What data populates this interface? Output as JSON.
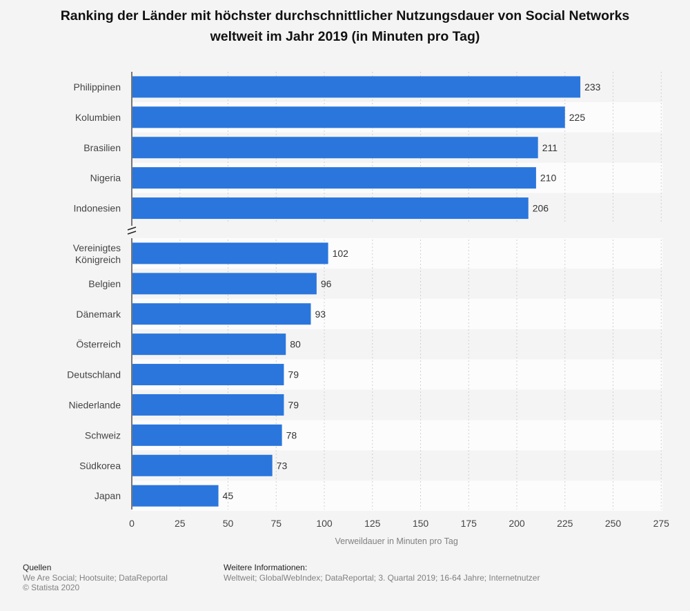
{
  "chart_data": {
    "type": "bar",
    "orientation": "horizontal",
    "title": "Ranking der Länder mit höchster durchschnittlicher Nutzungsdauer von Social Networks weltweit im Jahr 2019 (in Minuten pro Tag)",
    "xlabel": "Verweildauer in Minuten pro Tag",
    "ylabel": "",
    "xlim": [
      0,
      275
    ],
    "xticks": [
      0,
      25,
      50,
      75,
      100,
      125,
      150,
      175,
      200,
      225,
      250,
      275
    ],
    "grid": true,
    "axis_break": true,
    "categories": [
      "Philippinen",
      "Kolumbien",
      "Brasilien",
      "Nigeria",
      "Indonesien",
      "Vereinigtes Königreich",
      "Belgien",
      "Dänemark",
      "Österreich",
      "Deutschland",
      "Niederlande",
      "Schweiz",
      "Südkorea",
      "Japan"
    ],
    "values": [
      233,
      225,
      211,
      210,
      206,
      102,
      96,
      93,
      80,
      79,
      79,
      78,
      73,
      45
    ],
    "bar_color": "#2a76dd"
  },
  "footer": {
    "sources_heading": "Quellen",
    "sources_line1": "We Are Social; Hootsuite; DataReportal",
    "sources_line2": "© Statista 2020",
    "info_heading": "Weitere Informationen:",
    "info_line": "Weltweit; GlobalWebIndex; DataReportal; 3. Quartal 2019; 16-64 Jahre; Internetnutzer"
  }
}
